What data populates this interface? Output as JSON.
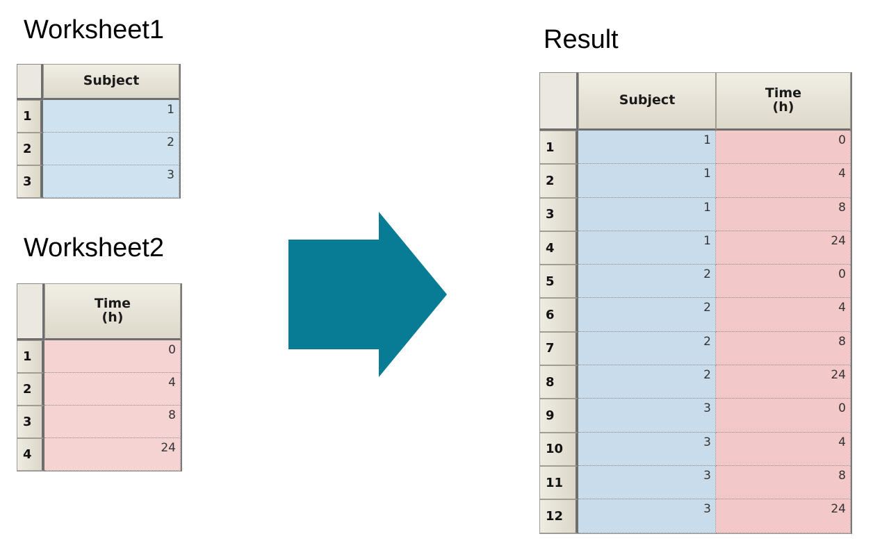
{
  "worksheet1": {
    "title": "Worksheet1",
    "columns": [
      "Subject"
    ],
    "rows": [
      {
        "num": "1",
        "cells": [
          "1"
        ]
      },
      {
        "num": "2",
        "cells": [
          "2"
        ]
      },
      {
        "num": "3",
        "cells": [
          "3"
        ]
      }
    ]
  },
  "worksheet2": {
    "title": "Worksheet2",
    "columns": [
      "Time\n(h)"
    ],
    "rows": [
      {
        "num": "1",
        "cells": [
          "0"
        ]
      },
      {
        "num": "2",
        "cells": [
          "4"
        ]
      },
      {
        "num": "3",
        "cells": [
          "8"
        ]
      },
      {
        "num": "4",
        "cells": [
          "24"
        ]
      }
    ]
  },
  "result": {
    "title": "Result",
    "columns": [
      "Subject",
      "Time\n(h)"
    ],
    "rows": [
      {
        "num": "1",
        "cells": [
          "1",
          "0"
        ]
      },
      {
        "num": "2",
        "cells": [
          "1",
          "4"
        ]
      },
      {
        "num": "3",
        "cells": [
          "1",
          "8"
        ]
      },
      {
        "num": "4",
        "cells": [
          "1",
          "24"
        ]
      },
      {
        "num": "5",
        "cells": [
          "2",
          "0"
        ]
      },
      {
        "num": "6",
        "cells": [
          "2",
          "4"
        ]
      },
      {
        "num": "7",
        "cells": [
          "2",
          "8"
        ]
      },
      {
        "num": "8",
        "cells": [
          "2",
          "24"
        ]
      },
      {
        "num": "9",
        "cells": [
          "3",
          "0"
        ]
      },
      {
        "num": "10",
        "cells": [
          "3",
          "4"
        ]
      },
      {
        "num": "11",
        "cells": [
          "3",
          "8"
        ]
      },
      {
        "num": "12",
        "cells": [
          "3",
          "24"
        ]
      }
    ]
  },
  "colors": {
    "arrow": "#087c94",
    "subject_cell": "#cfe2f0",
    "time_cell": "#f6d3d3"
  }
}
